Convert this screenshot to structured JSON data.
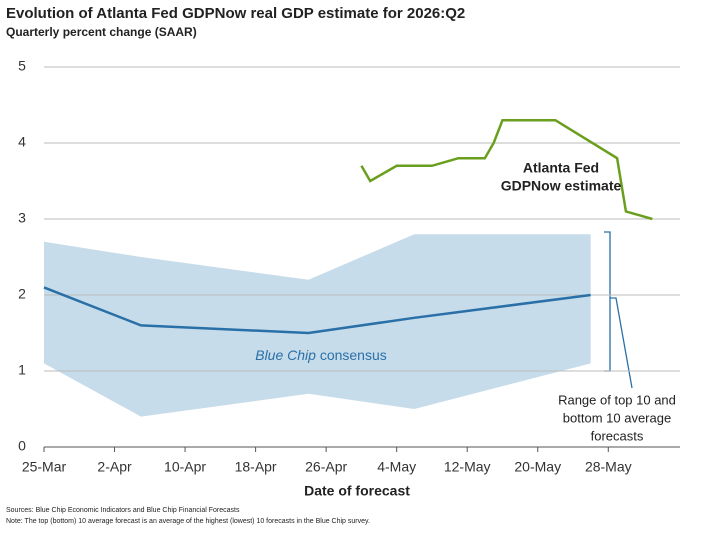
{
  "chart_data": {
    "type": "line",
    "title": "Evolution of Atlanta Fed GDPNow real GDP estimate for 2026:Q2",
    "subtitle": "Quarterly percent change (SAAR)",
    "xlabel": "Date of forecast",
    "xlim": [
      "25-Mar",
      "4-Jun"
    ],
    "xticks": [
      "25-Mar",
      "2-Apr",
      "10-Apr",
      "18-Apr",
      "26-Apr",
      "4-May",
      "12-May",
      "20-May",
      "28-May"
    ],
    "ylim": [
      0,
      5
    ],
    "yticks": [
      0,
      1,
      2,
      3,
      4,
      5
    ],
    "grid": true,
    "series": [
      {
        "name": "Atlanta Fed GDPNow estimate",
        "label_lines": [
          "Atlanta Fed",
          "GDPNow estimate"
        ],
        "color": "#6a9e1f",
        "x": [
          "30-Apr",
          "1-May",
          "4-May",
          "8-May",
          "11-May",
          "14-May",
          "15-May",
          "16-May",
          "22-May",
          "29-May",
          "30-May",
          "2-Jun"
        ],
        "values": [
          3.7,
          3.5,
          3.7,
          3.7,
          3.8,
          3.8,
          4.0,
          4.3,
          4.3,
          3.8,
          3.1,
          3.0
        ]
      },
      {
        "name_italic": "Blue Chip",
        "name_rest": " consensus",
        "color": "#2a70a8",
        "x": [
          "25-Mar",
          "5-Apr",
          "24-Apr",
          "6-May",
          "26-May"
        ],
        "values": [
          2.1,
          1.6,
          1.5,
          1.7,
          2.0
        ]
      }
    ],
    "range": {
      "label_lines": [
        "Range of top 10 and",
        "bottom 10 average",
        "forecasts"
      ],
      "color": "#c7dcea",
      "x": [
        "25-Mar",
        "5-Apr",
        "24-Apr",
        "6-May",
        "26-May"
      ],
      "high": [
        2.7,
        2.5,
        2.2,
        2.8,
        2.8
      ],
      "low": [
        1.1,
        0.4,
        0.7,
        0.5,
        1.1
      ]
    },
    "sources": "Sources: Blue Chip Economic Indicators and Blue Chip Financial Forecasts",
    "note": "Note: The top (bottom) 10 average forecast is an average of the highest (lowest) 10 forecasts in the Blue Chip survey."
  }
}
